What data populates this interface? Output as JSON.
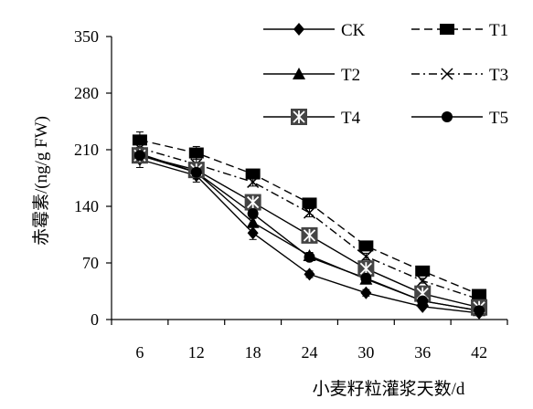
{
  "chart_data": {
    "type": "line",
    "title": "",
    "xlabel": "小麦籽粒灌浆天数/d",
    "ylabel": "赤霉素/(ng/g FW)",
    "categories": [
      "6",
      "12",
      "18",
      "24",
      "30",
      "36",
      "42"
    ],
    "ylim": [
      0,
      350
    ],
    "yticks": [
      "0",
      "70",
      "140",
      "210",
      "280",
      "350"
    ],
    "grid": false,
    "legend_position": "top-right",
    "series": [
      {
        "name": "CK",
        "marker": "diamond",
        "line": "solid",
        "values": [
          198,
          178,
          107,
          56,
          33,
          16,
          8
        ],
        "error": [
          10,
          8,
          8,
          4,
          4,
          2,
          1
        ]
      },
      {
        "name": "T1",
        "marker": "square",
        "line": "dashed",
        "values": [
          222,
          206,
          180,
          144,
          91,
          60,
          31
        ],
        "error": [
          10,
          8,
          4,
          4,
          3,
          3,
          2
        ]
      },
      {
        "name": "T2",
        "marker": "triangle",
        "line": "solid",
        "values": [
          205,
          182,
          120,
          79,
          50,
          23,
          11
        ],
        "error": [
          8,
          8,
          6,
          4,
          4,
          2,
          1
        ]
      },
      {
        "name": "T3",
        "marker": "x",
        "line": "dashdot",
        "values": [
          212,
          192,
          170,
          132,
          78,
          48,
          25
        ],
        "error": [
          10,
          8,
          5,
          5,
          4,
          3,
          2
        ]
      },
      {
        "name": "T4",
        "marker": "boxed-star",
        "line": "solid",
        "values": [
          203,
          185,
          145,
          104,
          63,
          32,
          15
        ],
        "error": [
          8,
          8,
          6,
          6,
          4,
          3,
          2
        ]
      },
      {
        "name": "T5",
        "marker": "circle",
        "line": "solid",
        "values": [
          203,
          182,
          131,
          77,
          51,
          23,
          11
        ],
        "error": [
          8,
          8,
          6,
          4,
          3,
          2,
          1
        ]
      }
    ]
  }
}
